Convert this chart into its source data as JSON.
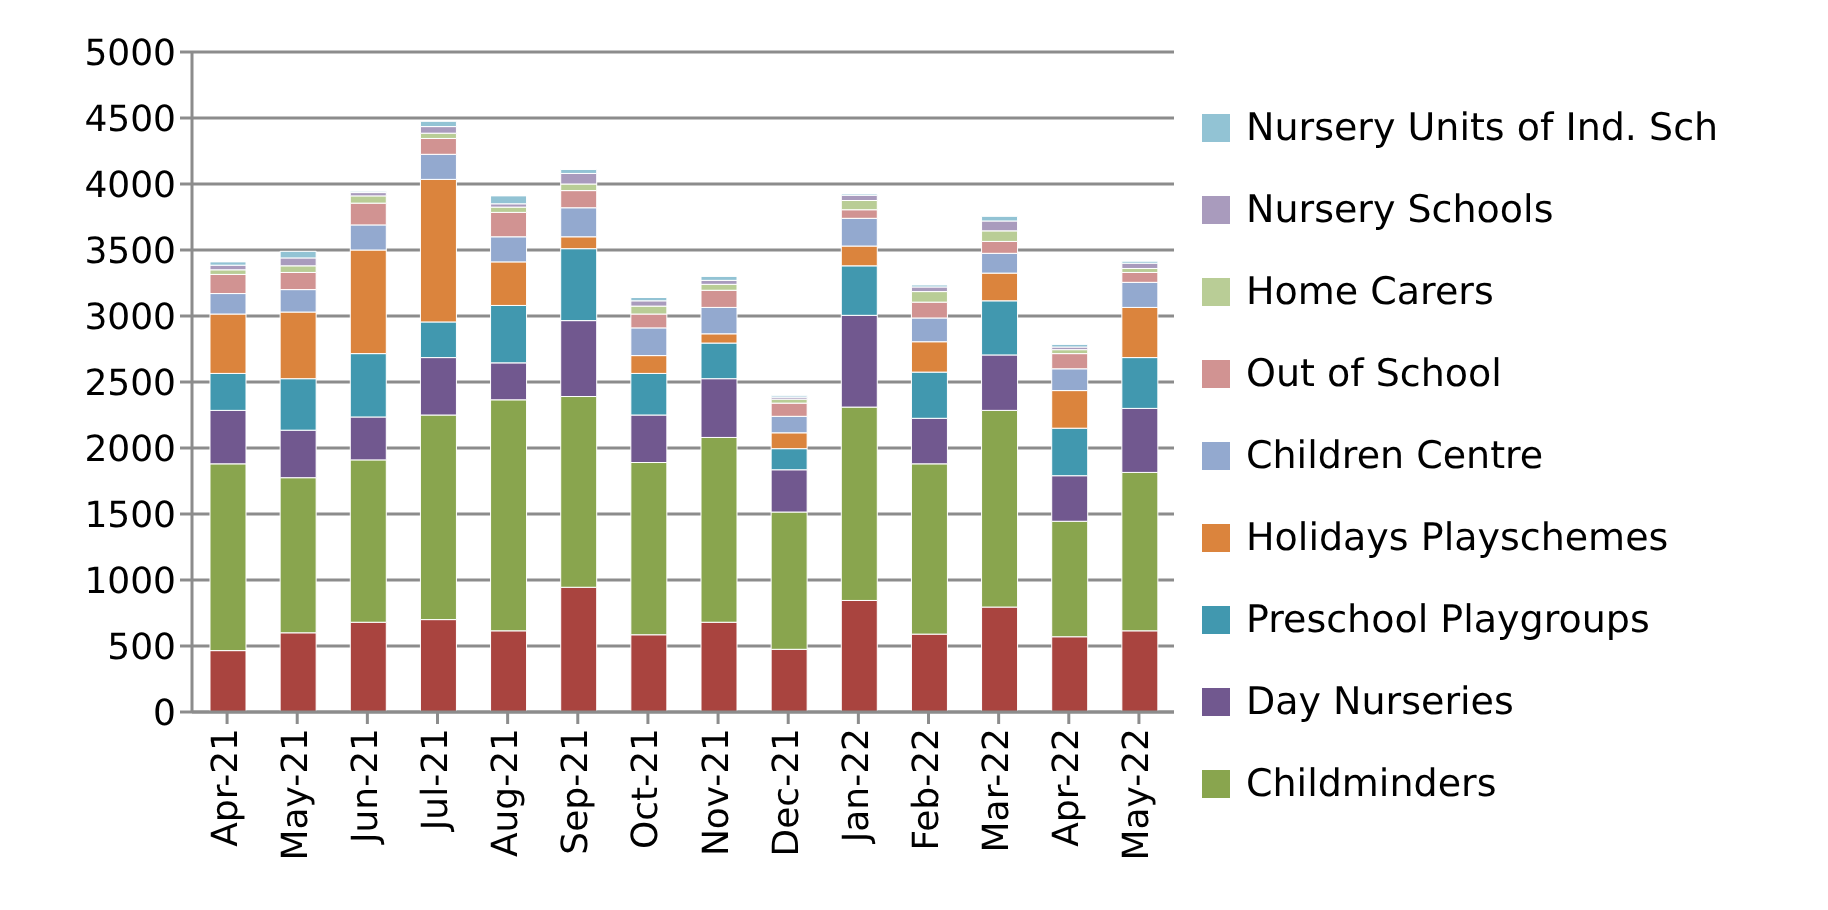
{
  "chart_data": {
    "type": "bar",
    "stacked": true,
    "categories": [
      "Apr-21",
      "May-21",
      "Jun-21",
      "Jul-21",
      "Aug-21",
      "Sep-21",
      "Oct-21",
      "Nov-21",
      "Dec-21",
      "Jan-22",
      "Feb-22",
      "Mar-22",
      "Apr-22",
      "May-22"
    ],
    "series": [
      {
        "color": "#a9443f",
        "values": [
          465,
          600,
          680,
          700,
          615,
          945,
          585,
          680,
          475,
          845,
          590,
          795,
          570,
          615
        ]
      },
      {
        "name": "Childminders",
        "color": "#89a54e",
        "values": [
          1415,
          1175,
          1230,
          1550,
          1750,
          1445,
          1305,
          1400,
          1040,
          1465,
          1290,
          1490,
          875,
          1200
        ]
      },
      {
        "name": "Day Nurseries",
        "color": "#71588f",
        "values": [
          405,
          360,
          325,
          435,
          280,
          575,
          360,
          445,
          320,
          695,
          345,
          420,
          345,
          485
        ]
      },
      {
        "name": "Preschool Playgroups",
        "color": "#4198af",
        "values": [
          280,
          390,
          480,
          270,
          435,
          545,
          315,
          270,
          160,
          375,
          350,
          410,
          360,
          385
        ]
      },
      {
        "name": "Holidays Playschemes",
        "color": "#db843d",
        "values": [
          450,
          505,
          785,
          1080,
          330,
          90,
          135,
          70,
          120,
          150,
          230,
          210,
          285,
          380
        ]
      },
      {
        "name": "Children Centre",
        "color": "#93a9cf",
        "values": [
          155,
          170,
          190,
          190,
          190,
          220,
          210,
          200,
          125,
          210,
          180,
          150,
          165,
          190
        ]
      },
      {
        "name": "Out of School",
        "color": "#d19392",
        "values": [
          145,
          130,
          165,
          120,
          185,
          130,
          105,
          130,
          100,
          65,
          120,
          90,
          115,
          75
        ]
      },
      {
        "name": "Home Carers",
        "color": "#b9cd96",
        "values": [
          35,
          50,
          55,
          40,
          40,
          50,
          60,
          45,
          30,
          70,
          80,
          80,
          30,
          30
        ]
      },
      {
        "name": "Nursery Schools",
        "color": "#a99bbd",
        "values": [
          35,
          60,
          25,
          50,
          25,
          80,
          40,
          30,
          15,
          40,
          35,
          75,
          20,
          40
        ]
      },
      {
        "name": "Nursery Units of Ind. Sch",
        "color": "#92c3d4",
        "values": [
          25,
          50,
          10,
          40,
          60,
          30,
          25,
          30,
          10,
          10,
          15,
          35,
          20,
          15
        ]
      }
    ],
    "ylim": [
      0,
      5000
    ],
    "yticks": [
      0,
      500,
      1000,
      1500,
      2000,
      2500,
      3000,
      3500,
      4000,
      4500,
      5000
    ],
    "grid": "y",
    "legend": "right"
  }
}
